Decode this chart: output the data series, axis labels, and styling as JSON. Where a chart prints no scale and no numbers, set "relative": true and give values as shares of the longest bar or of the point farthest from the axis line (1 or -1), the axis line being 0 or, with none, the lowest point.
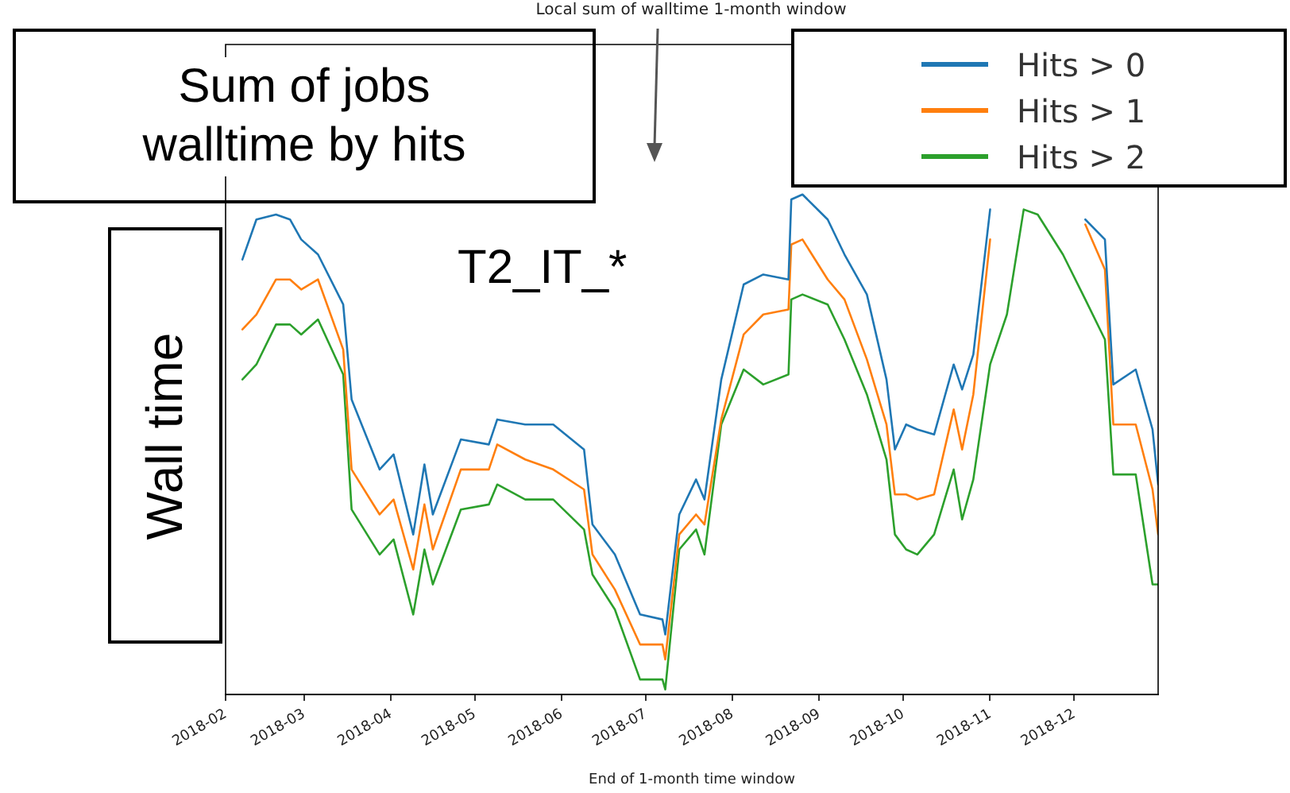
{
  "chart_data": {
    "type": "line",
    "title": "Local sum of walltime 1-month window",
    "xlabel": "End of 1-month time window",
    "ylabel": "Wall time",
    "annotations": [
      "Sum of jobs walltime by hits",
      "T2_IT_*"
    ],
    "relative": true,
    "x": [
      "2018-02-07",
      "2018-02-12",
      "2018-02-19",
      "2018-02-24",
      "2018-02-28",
      "2018-03-06",
      "2018-03-15",
      "2018-03-18",
      "2018-03-28",
      "2018-04-02",
      "2018-04-09",
      "2018-04-13",
      "2018-04-16",
      "2018-04-26",
      "2018-05-06",
      "2018-05-09",
      "2018-05-19",
      "2018-05-29",
      "2018-06-09",
      "2018-06-12",
      "2018-06-20",
      "2018-06-29",
      "2018-07-07",
      "2018-07-08",
      "2018-07-13",
      "2018-07-19",
      "2018-07-22",
      "2018-07-28",
      "2018-08-05",
      "2018-08-12",
      "2018-08-21",
      "2018-08-22",
      "2018-08-26",
      "2018-09-04",
      "2018-09-10",
      "2018-09-18",
      "2018-09-25",
      "2018-09-28",
      "2018-10-02",
      "2018-10-06",
      "2018-10-12",
      "2018-10-19",
      "2018-10-22",
      "2018-10-26",
      "2018-11-01",
      "2018-11-07",
      "2018-11-13",
      "2018-11-18",
      "2018-11-27",
      "2018-12-05",
      "2018-12-12",
      "2018-12-15",
      "2018-12-23",
      "2018-12-29",
      "2018-12-31"
    ],
    "xlim": [
      "2018-02-01",
      "2018-12-31"
    ],
    "xticks": [
      "2018-02",
      "2018-03",
      "2018-04",
      "2018-05",
      "2018-06",
      "2018-07",
      "2018-08",
      "2018-09",
      "2018-10",
      "2018-11",
      "2018-12"
    ],
    "series": [
      {
        "name": "Hits > 0",
        "color": "#1f77b4",
        "values": [
          0.87,
          0.95,
          0.96,
          0.95,
          0.91,
          0.88,
          0.78,
          0.59,
          0.45,
          0.48,
          0.32,
          0.46,
          0.36,
          0.51,
          0.5,
          0.55,
          0.54,
          0.54,
          0.49,
          0.34,
          0.28,
          0.16,
          0.15,
          0.12,
          0.36,
          0.43,
          0.39,
          0.63,
          0.82,
          0.84,
          0.83,
          0.99,
          1.0,
          0.95,
          0.88,
          0.8,
          0.63,
          0.49,
          0.54,
          0.53,
          0.52,
          0.66,
          0.61,
          0.68,
          0.97,
          null,
          null,
          null,
          null,
          0.95,
          0.91,
          0.62,
          0.65,
          0.53,
          0.42
        ]
      },
      {
        "name": "Hits > 1",
        "color": "#ff7f0e",
        "values": [
          0.73,
          0.76,
          0.83,
          0.83,
          0.81,
          0.83,
          0.69,
          0.45,
          0.36,
          0.39,
          0.25,
          0.38,
          0.29,
          0.45,
          0.45,
          0.5,
          0.47,
          0.45,
          0.41,
          0.28,
          0.21,
          0.1,
          0.1,
          0.07,
          0.32,
          0.36,
          0.34,
          0.55,
          0.72,
          0.76,
          0.77,
          0.9,
          0.91,
          0.83,
          0.79,
          0.67,
          0.54,
          0.4,
          0.4,
          0.39,
          0.4,
          0.57,
          0.49,
          0.6,
          0.91,
          null,
          null,
          null,
          null,
          0.94,
          0.85,
          0.54,
          0.54,
          0.41,
          0.32
        ]
      },
      {
        "name": "Hits > 2",
        "color": "#2ca02c",
        "values": [
          0.63,
          0.66,
          0.74,
          0.74,
          0.72,
          0.75,
          0.64,
          0.37,
          0.28,
          0.31,
          0.16,
          0.29,
          0.22,
          0.37,
          0.38,
          0.42,
          0.39,
          0.39,
          0.33,
          0.24,
          0.17,
          0.03,
          0.03,
          0.01,
          0.29,
          0.33,
          0.28,
          0.54,
          0.65,
          0.62,
          0.64,
          0.79,
          0.8,
          0.78,
          0.71,
          0.6,
          0.47,
          0.32,
          0.29,
          0.28,
          0.32,
          0.45,
          0.35,
          0.43,
          0.66,
          0.76,
          0.97,
          0.96,
          0.88,
          0.79,
          0.71,
          0.44,
          0.44,
          0.22,
          0.22
        ]
      }
    ],
    "legend": "top right",
    "grid": false,
    "line_style": "solid",
    "marker": "none"
  }
}
